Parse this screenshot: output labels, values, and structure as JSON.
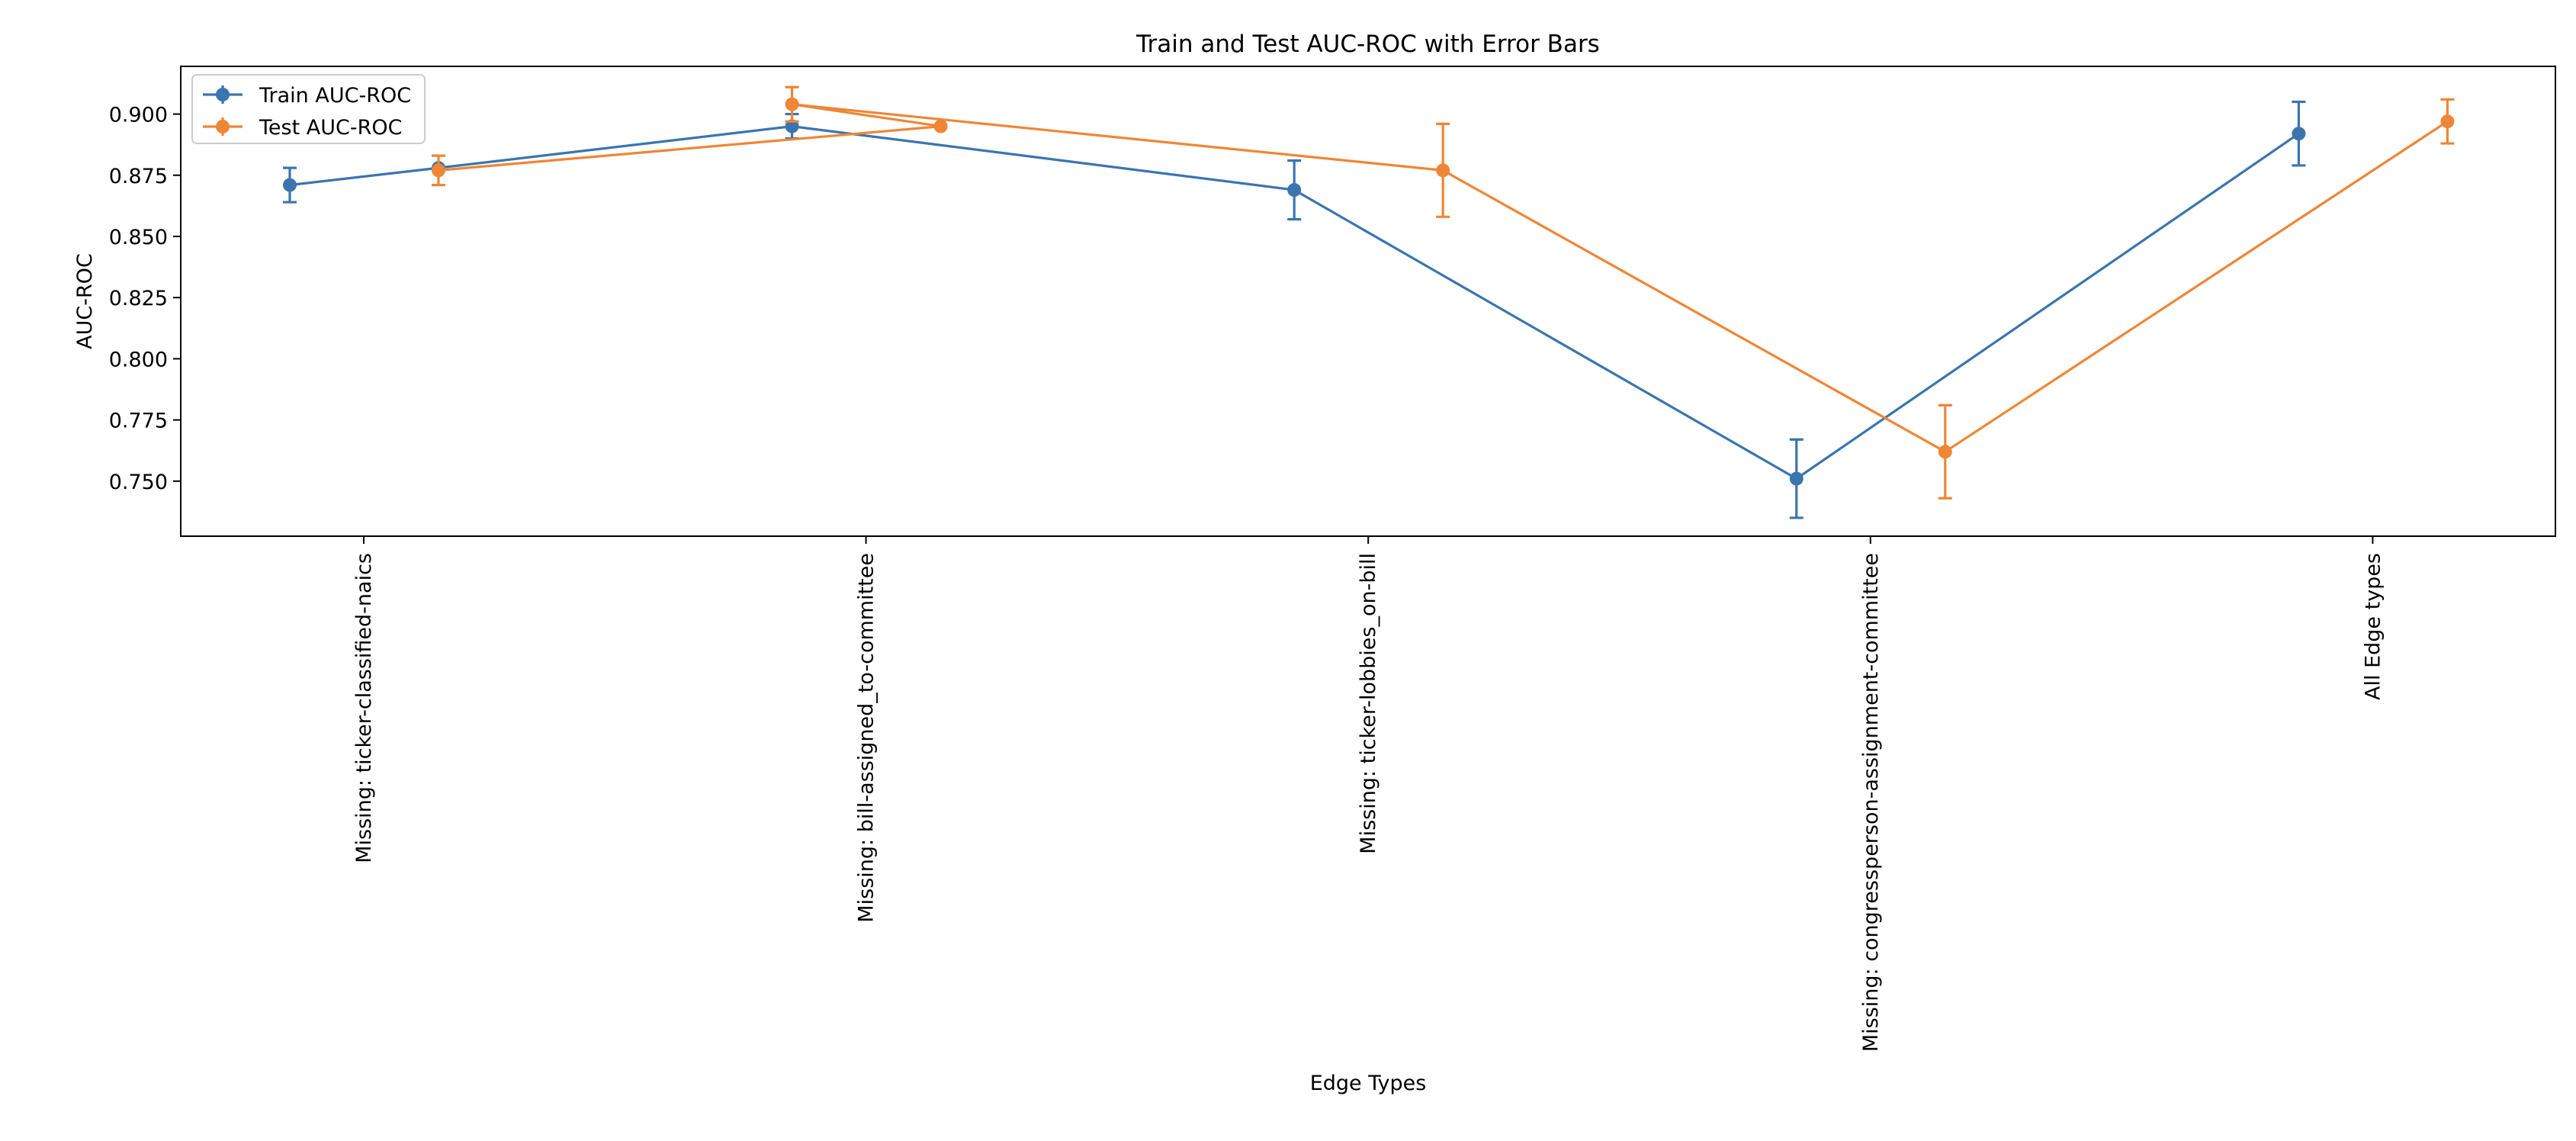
{
  "chart_data": {
    "type": "line",
    "title": "Train and Test AUC-ROC with Error Bars",
    "xlabel": "Edge Types",
    "ylabel": "AUC-ROC",
    "categories": [
      "Missing: ticker-classified-naics",
      "Missing: bill-assigned_to-committee",
      "Missing: ticker-lobbies_on-bill",
      "Missing: congressperson-assignment-committee",
      "All Edge types"
    ],
    "y_ticks": [
      "0.750",
      "0.775",
      "0.800",
      "0.825",
      "0.850",
      "0.875",
      "0.900"
    ],
    "y_tick_values": [
      0.75,
      0.775,
      0.8,
      0.825,
      0.85,
      0.875,
      0.9
    ],
    "ylim": [
      0.7275,
      0.9195
    ],
    "grid": false,
    "legend_position": "top-left",
    "series": [
      {
        "name": "Train AUC-ROC",
        "color": "#3a75af",
        "marker": "circle",
        "offset": "left",
        "points": [
          {
            "x": "Missing: ticker-classified-naics",
            "y": 0.871,
            "err": 0.007
          },
          {
            "x": "Missing: ticker-classified-naics",
            "y": 0.878,
            "err": null
          },
          {
            "x": "Missing: bill-assigned_to-committee",
            "y": 0.895,
            "err": 0.005
          },
          {
            "x": "Missing: ticker-lobbies_on-bill",
            "y": 0.869,
            "err": 0.012
          },
          {
            "x": "Missing: congressperson-assignment-committee",
            "y": 0.751,
            "err": 0.016
          },
          {
            "x": "All Edge types",
            "y": 0.892,
            "err": 0.013
          }
        ]
      },
      {
        "name": "Test AUC-ROC",
        "color": "#ef8636",
        "marker": "circle",
        "offset": "right",
        "points": [
          {
            "x": "Missing: ticker-classified-naics",
            "y": 0.877,
            "err": 0.006
          },
          {
            "x": "Missing: bill-assigned_to-committee",
            "y": 0.895,
            "err": null
          },
          {
            "x": "Missing: bill-assigned_to-committee",
            "y": 0.904,
            "err": 0.007
          },
          {
            "x": "Missing: ticker-lobbies_on-bill",
            "y": 0.877,
            "err": 0.019
          },
          {
            "x": "Missing: congressperson-assignment-committee",
            "y": 0.762,
            "err": 0.019
          },
          {
            "x": "All Edge types",
            "y": 0.897,
            "err": 0.009
          }
        ]
      }
    ]
  }
}
